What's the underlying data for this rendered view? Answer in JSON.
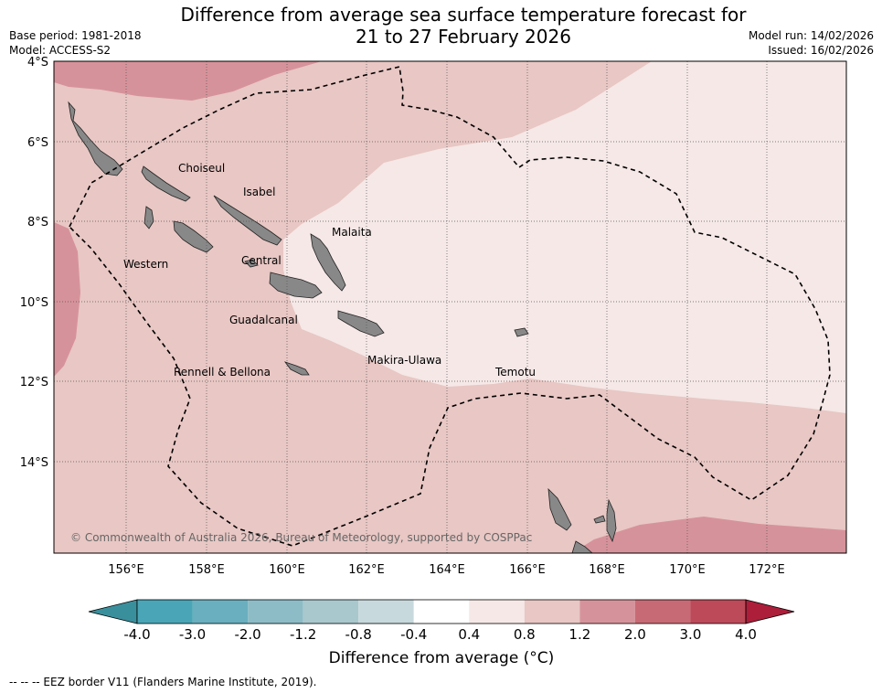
{
  "header": {
    "title_line1": "Difference from average sea surface temperature forecast for",
    "title_line2": "21 to 27 February 2026",
    "base_period": "Base period: 1981-2018",
    "model": "Model: ACCESS-S2",
    "model_run": "Model run: 14/02/2026",
    "issued": "Issued: 16/02/2026"
  },
  "map": {
    "lat_ticks": [
      "4°S",
      "6°S",
      "8°S",
      "10°S",
      "12°S",
      "14°S"
    ],
    "lon_ticks": [
      "156°E",
      "158°E",
      "160°E",
      "162°E",
      "164°E",
      "166°E",
      "168°E",
      "170°E",
      "172°E"
    ],
    "provinces": [
      "Choiseul",
      "Isabel",
      "Malaita",
      "Western",
      "Central",
      "Guadalcanal",
      "Makira-Ulawa",
      "Rennell & Bellona",
      "Temotu"
    ],
    "copyright": "© Commonwealth of Australia 2026, Bureau of Meteorology, supported by COSPPac",
    "colors": {
      "band_0_4_to_0_8": "#f5e8e7",
      "band_0_8_to_1_2": "#e8c7c4",
      "band_1_2_to_2_0": "#d6929a",
      "land": "#888888"
    }
  },
  "legend": {
    "tick_labels": [
      "-4.0",
      "-3.0",
      "-2.0",
      "-1.2",
      "-0.8",
      "-0.4",
      "0.4",
      "0.8",
      "1.2",
      "2.0",
      "3.0",
      "4.0"
    ],
    "colors": [
      "#3a8f9c",
      "#4aa6b6",
      "#6aafbf",
      "#8dbcc7",
      "#a9c8cd",
      "#c8d9dd",
      "#ffffff",
      "#f5e8e7",
      "#e8c7c4",
      "#d6929a",
      "#c86a75",
      "#bd4a59",
      "#ad1e3a"
    ],
    "title": "Difference from average (°C)"
  },
  "footer": {
    "eez_note": "--  --  -- EEZ border V11 (Flanders Marine Institute, 2019)."
  }
}
